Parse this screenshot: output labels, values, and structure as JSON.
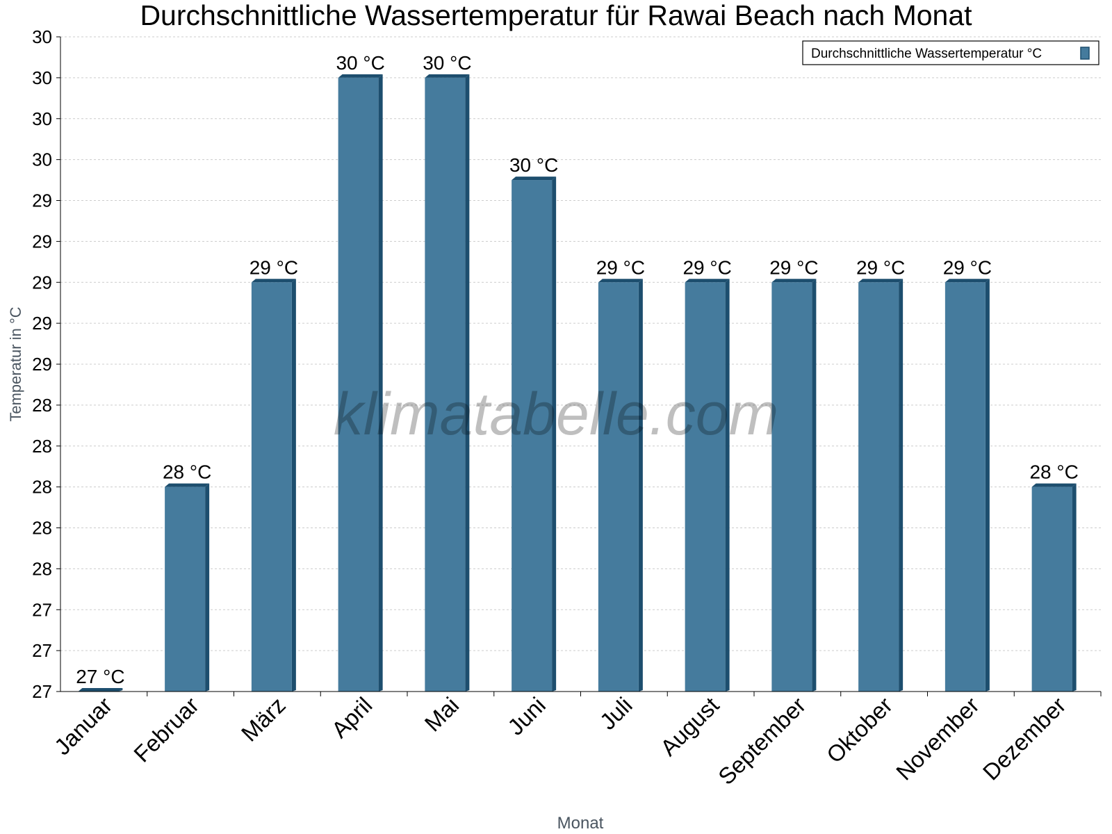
{
  "chart_data": {
    "type": "bar",
    "title": "Durchschnittliche Wassertemperatur für Rawai Beach nach Monat",
    "xlabel": "Monat",
    "ylabel": "Temperatur in °C",
    "ylim": [
      27,
      30.2
    ],
    "y_ticks": [
      27,
      27.2,
      27.4,
      27.6,
      27.8,
      28,
      28.2,
      28.4,
      28.6,
      28.8,
      29,
      29.2,
      29.4,
      29.6,
      29.8,
      30,
      30.2
    ],
    "y_tick_labels": [
      "27",
      "27",
      "27",
      "28",
      "28",
      "28",
      "28",
      "28",
      "29",
      "29",
      "29",
      "29",
      "29",
      "30",
      "30",
      "30",
      "30"
    ],
    "categories": [
      "Januar",
      "Februar",
      "März",
      "April",
      "Mai",
      "Juni",
      "Juli",
      "August",
      "September",
      "Oktober",
      "November",
      "Dezember"
    ],
    "values": [
      27,
      28,
      29,
      30,
      30,
      29.5,
      29,
      29,
      29,
      29,
      29,
      28
    ],
    "data_labels": [
      "27 °C",
      "28 °C",
      "29 °C",
      "30 °C",
      "30 °C",
      "30 °C",
      "29 °C",
      "29 °C",
      "29 °C",
      "29 °C",
      "29 °C",
      "28 °C"
    ],
    "legend": {
      "label": "Durchschnittliche Wassertemperatur °C",
      "placement": "top-right"
    },
    "grid": true,
    "watermark": "klimatabelle.com",
    "colors": {
      "bar": "#457b9d",
      "bar_dark": "#1d4e6e",
      "grid": "#cccccc"
    }
  }
}
